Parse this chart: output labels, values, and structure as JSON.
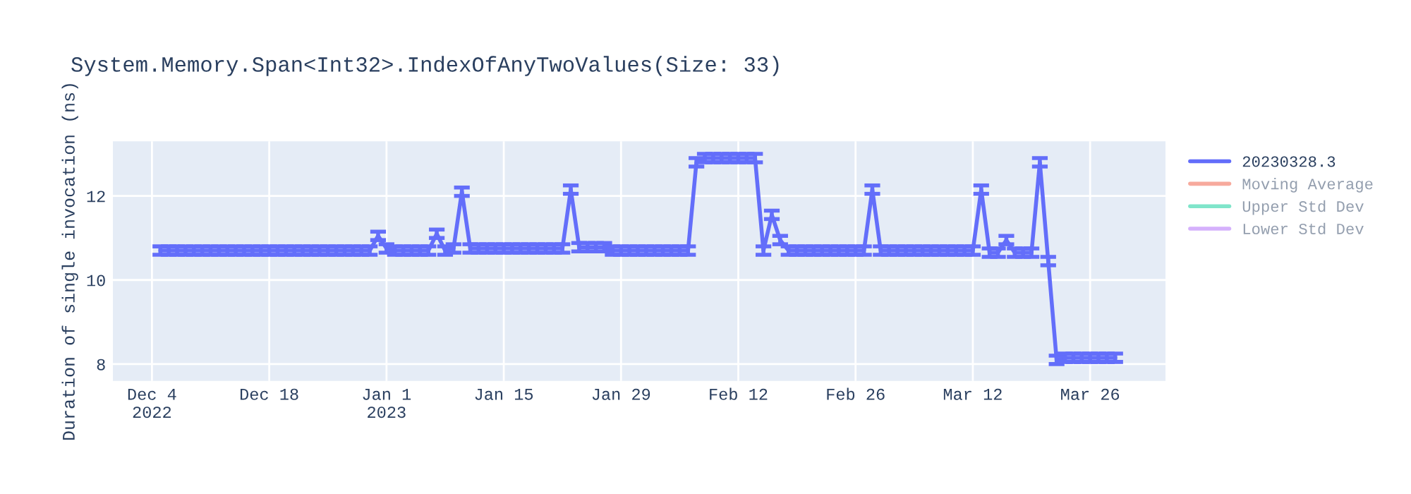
{
  "chart_data": {
    "type": "line",
    "title": "System.Memory.Span<Int32>.IndexOfAnyTwoValues(Size: 33)",
    "ylabel": "Duration of single invocation (ns)",
    "x": [
      "2022-12-05",
      "2022-12-06",
      "2022-12-07",
      "2022-12-08",
      "2022-12-09",
      "2022-12-10",
      "2022-12-11",
      "2022-12-12",
      "2022-12-13",
      "2022-12-14",
      "2022-12-15",
      "2022-12-16",
      "2022-12-17",
      "2022-12-18",
      "2022-12-19",
      "2022-12-20",
      "2022-12-21",
      "2022-12-22",
      "2022-12-23",
      "2022-12-24",
      "2022-12-25",
      "2022-12-26",
      "2022-12-27",
      "2022-12-28",
      "2022-12-29",
      "2022-12-30",
      "2022-12-31",
      "2023-01-01",
      "2023-01-02",
      "2023-01-03",
      "2023-01-04",
      "2023-01-05",
      "2023-01-06",
      "2023-01-07",
      "2023-01-08",
      "2023-01-09",
      "2023-01-10",
      "2023-01-11",
      "2023-01-12",
      "2023-01-13",
      "2023-01-14",
      "2023-01-15",
      "2023-01-16",
      "2023-01-17",
      "2023-01-18",
      "2023-01-19",
      "2023-01-20",
      "2023-01-21",
      "2023-01-22",
      "2023-01-23",
      "2023-01-24",
      "2023-01-25",
      "2023-01-26",
      "2023-01-27",
      "2023-01-28",
      "2023-01-29",
      "2023-01-30",
      "2023-01-31",
      "2023-02-01",
      "2023-02-02",
      "2023-02-03",
      "2023-02-04",
      "2023-02-05",
      "2023-02-06",
      "2023-02-07",
      "2023-02-08",
      "2023-02-09",
      "2023-02-10",
      "2023-02-11",
      "2023-02-12",
      "2023-02-13",
      "2023-02-14",
      "2023-02-15",
      "2023-02-16",
      "2023-02-17",
      "2023-02-18",
      "2023-02-19",
      "2023-02-20",
      "2023-02-21",
      "2023-02-22",
      "2023-02-23",
      "2023-02-24",
      "2023-02-25",
      "2023-02-26",
      "2023-02-27",
      "2023-02-28",
      "2023-03-01",
      "2023-03-02",
      "2023-03-03",
      "2023-03-04",
      "2023-03-05",
      "2023-03-06",
      "2023-03-07",
      "2023-03-08",
      "2023-03-09",
      "2023-03-10",
      "2023-03-11",
      "2023-03-12",
      "2023-03-13",
      "2023-03-14",
      "2023-03-15",
      "2023-03-16",
      "2023-03-17",
      "2023-03-18",
      "2023-03-19",
      "2023-03-20",
      "2023-03-21",
      "2023-03-22",
      "2023-03-23",
      "2023-03-24",
      "2023-03-25",
      "2023-03-26",
      "2023-03-27",
      "2023-03-28",
      "2023-03-29"
    ],
    "series": [
      {
        "name": "20230328.3",
        "color": "#636efa",
        "values": [
          10.7,
          10.7,
          10.7,
          10.7,
          10.7,
          10.7,
          10.7,
          10.7,
          10.7,
          10.7,
          10.7,
          10.7,
          10.7,
          10.7,
          10.7,
          10.7,
          10.7,
          10.7,
          10.7,
          10.7,
          10.7,
          10.7,
          10.7,
          10.7,
          10.7,
          10.7,
          11.05,
          10.75,
          10.7,
          10.7,
          10.7,
          10.7,
          10.7,
          11.1,
          10.7,
          10.75,
          12.1,
          10.75,
          10.75,
          10.75,
          10.75,
          10.75,
          10.75,
          10.75,
          10.75,
          10.75,
          10.75,
          10.75,
          10.75,
          12.15,
          10.78,
          10.78,
          10.78,
          10.78,
          10.7,
          10.7,
          10.7,
          10.7,
          10.7,
          10.7,
          10.7,
          10.7,
          10.7,
          10.7,
          12.8,
          12.9,
          12.9,
          12.9,
          12.9,
          12.9,
          12.9,
          12.9,
          10.7,
          11.55,
          10.95,
          10.7,
          10.7,
          10.7,
          10.7,
          10.7,
          10.7,
          10.7,
          10.7,
          10.7,
          10.7,
          12.15,
          10.7,
          10.7,
          10.7,
          10.7,
          10.7,
          10.7,
          10.7,
          10.7,
          10.7,
          10.7,
          10.7,
          10.7,
          12.15,
          10.65,
          10.65,
          10.95,
          10.65,
          10.65,
          10.65,
          12.8,
          10.45,
          8.1,
          8.15,
          8.15,
          8.15,
          8.15,
          8.15,
          8.15,
          8.15
        ],
        "errors": [
          0.1,
          0.1,
          0.1,
          0.1,
          0.1,
          0.1,
          0.1,
          0.1,
          0.1,
          0.1,
          0.1,
          0.1,
          0.1,
          0.1,
          0.1,
          0.1,
          0.1,
          0.1,
          0.1,
          0.1,
          0.1,
          0.1,
          0.1,
          0.1,
          0.1,
          0.1,
          0.1,
          0.1,
          0.1,
          0.1,
          0.1,
          0.1,
          0.1,
          0.1,
          0.1,
          0.1,
          0.1,
          0.1,
          0.1,
          0.1,
          0.1,
          0.1,
          0.1,
          0.1,
          0.1,
          0.1,
          0.1,
          0.1,
          0.1,
          0.1,
          0.1,
          0.1,
          0.1,
          0.1,
          0.1,
          0.1,
          0.1,
          0.1,
          0.1,
          0.1,
          0.1,
          0.1,
          0.1,
          0.1,
          0.1,
          0.1,
          0.1,
          0.1,
          0.1,
          0.1,
          0.1,
          0.1,
          0.1,
          0.1,
          0.1,
          0.1,
          0.1,
          0.1,
          0.1,
          0.1,
          0.1,
          0.1,
          0.1,
          0.1,
          0.1,
          0.1,
          0.1,
          0.1,
          0.1,
          0.1,
          0.1,
          0.1,
          0.1,
          0.1,
          0.1,
          0.1,
          0.1,
          0.1,
          0.1,
          0.1,
          0.1,
          0.1,
          0.1,
          0.1,
          0.1,
          0.1,
          0.1,
          0.1,
          0.1,
          0.1,
          0.1,
          0.1,
          0.1,
          0.1,
          0.1
        ]
      },
      {
        "name": "Moving Average",
        "color": "#ef553b",
        "values": [
          null,
          null,
          null,
          null,
          null,
          null,
          null,
          null,
          null,
          null,
          null,
          null,
          null,
          null,
          null,
          null,
          null,
          null,
          null,
          null,
          null,
          null,
          null,
          null,
          null,
          null,
          null,
          null,
          null,
          null,
          null,
          null,
          null,
          null,
          null,
          null,
          null,
          null,
          null,
          null,
          null,
          null,
          null,
          null,
          null,
          null,
          null,
          null,
          null,
          null,
          null,
          null,
          null,
          null,
          null,
          null,
          null,
          null,
          null,
          null,
          null,
          null,
          null,
          null,
          null,
          null,
          null,
          null,
          null,
          null,
          null,
          null,
          null,
          null,
          null,
          null,
          null,
          null,
          null,
          null,
          null,
          null,
          null,
          null,
          null,
          null,
          null,
          null,
          null,
          null,
          null,
          null,
          null,
          null,
          null,
          null,
          null,
          null,
          null,
          null,
          null,
          null,
          null,
          null,
          null,
          null,
          null,
          null,
          null,
          null,
          null,
          null,
          null,
          null,
          null
        ]
      },
      {
        "name": "Upper Std Dev",
        "color": "#00cc96",
        "values": [
          null,
          null,
          null,
          null,
          null,
          null,
          null,
          null,
          null,
          null,
          null,
          null,
          null,
          null,
          null,
          null,
          null,
          null,
          null,
          null,
          null,
          null,
          null,
          null,
          null,
          null,
          null,
          null,
          null,
          null,
          null,
          null,
          null,
          null,
          null,
          null,
          null,
          null,
          null,
          null,
          null,
          null,
          null,
          null,
          null,
          null,
          null,
          null,
          null,
          null,
          null,
          null,
          null,
          null,
          null,
          null,
          null,
          null,
          null,
          null,
          null,
          null,
          null,
          null,
          null,
          null,
          null,
          null,
          null,
          null,
          null,
          null,
          null,
          null,
          null,
          null,
          null,
          null,
          null,
          null,
          null,
          null,
          null,
          null,
          null,
          null,
          null,
          null,
          null,
          null,
          null,
          null,
          null,
          null,
          null,
          null,
          null,
          null,
          null,
          null,
          null,
          null,
          null,
          null,
          null,
          null,
          null,
          null,
          null,
          null,
          null,
          null,
          null,
          null,
          null
        ]
      },
      {
        "name": "Lower Std Dev",
        "color": "#ab63fa",
        "values": [
          null,
          null,
          null,
          null,
          null,
          null,
          null,
          null,
          null,
          null,
          null,
          null,
          null,
          null,
          null,
          null,
          null,
          null,
          null,
          null,
          null,
          null,
          null,
          null,
          null,
          null,
          null,
          null,
          null,
          null,
          null,
          null,
          null,
          null,
          null,
          null,
          null,
          null,
          null,
          null,
          null,
          null,
          null,
          null,
          null,
          null,
          null,
          null,
          null,
          null,
          null,
          null,
          null,
          null,
          null,
          null,
          null,
          null,
          null,
          null,
          null,
          null,
          null,
          null,
          null,
          null,
          null,
          null,
          null,
          null,
          null,
          null,
          null,
          null,
          null,
          null,
          null,
          null,
          null,
          null,
          null,
          null,
          null,
          null,
          null,
          null,
          null,
          null,
          null,
          null,
          null,
          null,
          null,
          null,
          null,
          null,
          null,
          null,
          null,
          null,
          null,
          null,
          null,
          null,
          null,
          null,
          null,
          null,
          null,
          null,
          null,
          null,
          null,
          null,
          null
        ]
      }
    ],
    "xlim": [
      "2022-11-29T08:00",
      "2023-04-04"
    ],
    "xticks": [
      {
        "value": "2022-12-04",
        "label": "Dec 4\n2022"
      },
      {
        "value": "2022-12-18",
        "label": "Dec 18"
      },
      {
        "value": "2023-01-01",
        "label": "Jan 1\n2023"
      },
      {
        "value": "2023-01-15",
        "label": "Jan 15"
      },
      {
        "value": "2023-01-29",
        "label": "Jan 29"
      },
      {
        "value": "2023-02-12",
        "label": "Feb 12"
      },
      {
        "value": "2023-02-26",
        "label": "Feb 26"
      },
      {
        "value": "2023-03-12",
        "label": "Mar 12"
      },
      {
        "value": "2023-03-26",
        "label": "Mar 26"
      }
    ],
    "ylim": [
      7.6,
      13.3
    ],
    "yticks": [
      8,
      10,
      12
    ],
    "grid": true,
    "legend": "right",
    "marker": "none",
    "line_style": "solid"
  }
}
